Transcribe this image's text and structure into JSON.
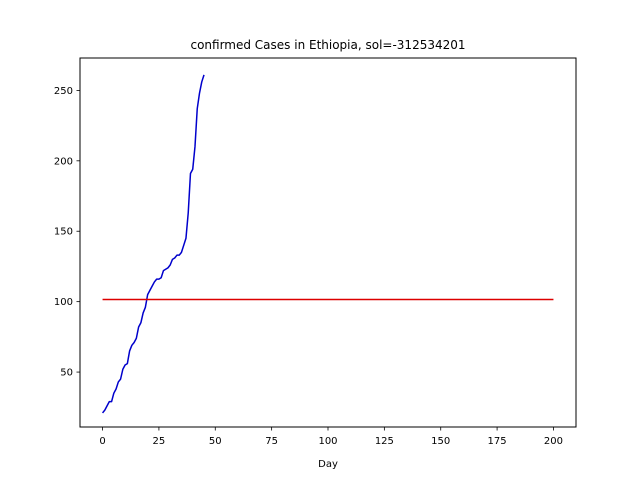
{
  "chart_data": {
    "type": "line",
    "title": "confirmed Cases in Ethiopia, sol=-312534201",
    "xlabel": "Day",
    "ylabel": "",
    "xlim": [
      -10,
      210
    ],
    "ylim": [
      11,
      273
    ],
    "xticks": [
      0,
      25,
      50,
      75,
      100,
      125,
      150,
      175,
      200
    ],
    "yticks": [
      50,
      100,
      150,
      200,
      250
    ],
    "grid": false,
    "series": [
      {
        "color": "#0000cc",
        "x": [
          0,
          1,
          2,
          3,
          4,
          5,
          6,
          7,
          8,
          9,
          10,
          11,
          12,
          13,
          14,
          15,
          16,
          17,
          18,
          19,
          20,
          21,
          22,
          23,
          24,
          25,
          26,
          27,
          28,
          29,
          30,
          31,
          32,
          33,
          34,
          35,
          36,
          37,
          38,
          39,
          40,
          41,
          42,
          43,
          44,
          45
        ],
        "y": [
          21,
          23,
          26,
          29,
          29,
          35,
          38,
          43,
          45,
          52,
          55,
          56,
          65,
          69,
          71,
          74,
          82,
          85,
          92,
          96,
          105,
          108,
          111,
          114,
          116,
          116,
          117,
          122,
          123,
          124,
          126,
          130,
          131,
          133,
          133,
          135,
          140,
          145,
          163,
          191,
          194,
          210,
          237,
          248,
          256,
          261
        ]
      },
      {
        "color": "#dd0000",
        "x": [
          0,
          200
        ],
        "y": [
          101.5,
          101.5
        ]
      }
    ]
  }
}
